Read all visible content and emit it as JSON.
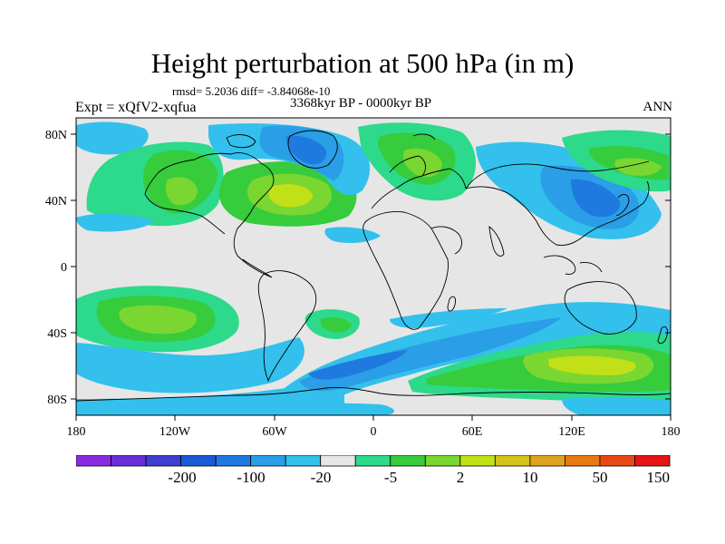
{
  "title": "Height perturbation at 500 hPa (in m)",
  "stats_line": "rmsd= 5.2036 diff= -3.84068e-10",
  "experiment": "Expt = xQfV2-xqfua",
  "period": "3368kyr BP - 0000kyr BP",
  "season": "ANN",
  "lat_labels": [
    "80N",
    "40N",
    "0",
    "40S",
    "80S"
  ],
  "lon_labels": [
    "180",
    "120W",
    "60W",
    "0",
    "60E",
    "120E",
    "180"
  ],
  "colorbar": {
    "colors": [
      "#8a2be2",
      "#6a2fd9",
      "#3f3fd1",
      "#1a5ad6",
      "#1f7ae0",
      "#2a9ee6",
      "#33c0ec",
      "#e6e6e6",
      "#2dd98a",
      "#36cc3c",
      "#7ad631",
      "#c2e017",
      "#d6c21a",
      "#e0a31f",
      "#e67a12",
      "#e64a12",
      "#e61414"
    ],
    "labels": [
      "-200",
      "-100",
      "-20",
      "-5",
      "2",
      "10",
      "50",
      "150"
    ]
  },
  "map_data": {
    "projection": "cylindrical-equidistant",
    "lon_range": [
      -180,
      180
    ],
    "lat_range": [
      -90,
      90
    ],
    "field": "geopotential height perturbation"
  }
}
